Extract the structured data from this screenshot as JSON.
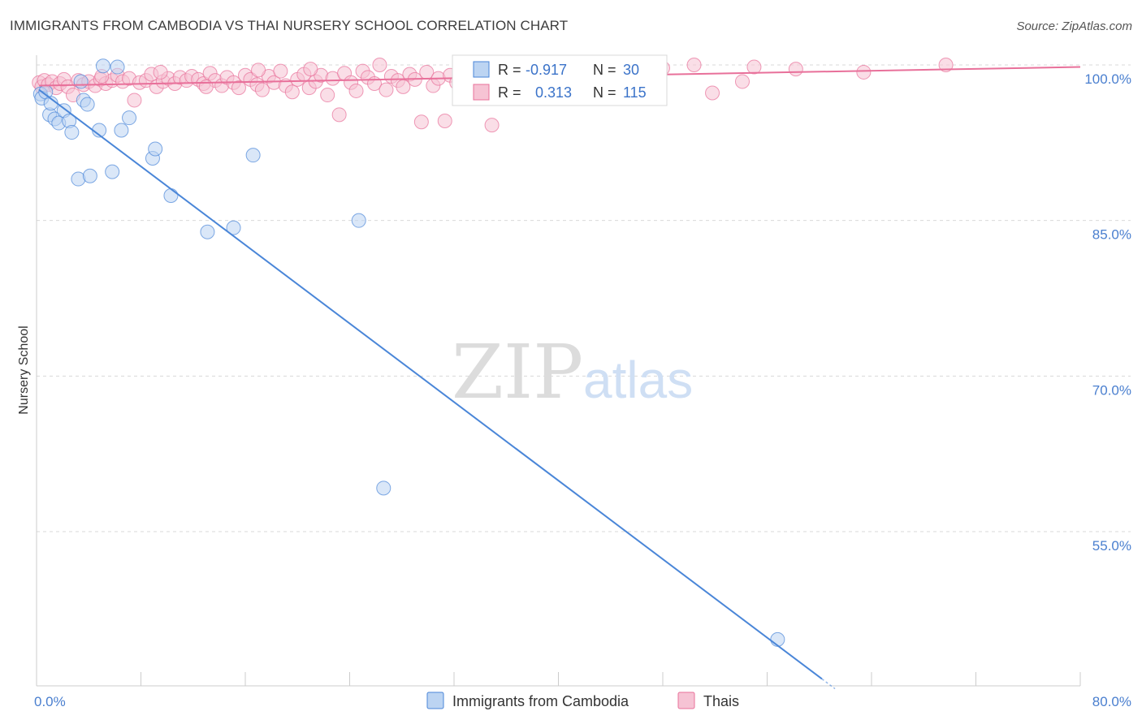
{
  "title": "IMMIGRANTS FROM CAMBODIA VS THAI NURSERY SCHOOL CORRELATION CHART",
  "source": "Source: ZipAtlas.com",
  "watermark": {
    "zip": "ZIP",
    "atlas": "atlas"
  },
  "colors": {
    "blue": "#4a86d8",
    "blue_fill": "#bcd4f2",
    "pink": "#e8709a",
    "pink_fill": "#f6c3d4",
    "tick_text": "#4a7fcf",
    "grid": "#d9d9d9"
  },
  "legend": {
    "rows": [
      {
        "r_label": "R =",
        "r_value": "-0.917",
        "n_label": "N =",
        "n_value": "30",
        "series": "blue"
      },
      {
        "r_label": "R =",
        "r_value": "0.313",
        "n_label": "N =",
        "n_value": "115",
        "series": "pink"
      }
    ]
  },
  "bottom_legend": [
    "Immigrants from Cambodia",
    "Thais"
  ],
  "chart_data": {
    "type": "scatter",
    "title": "IMMIGRANTS FROM CAMBODIA VS THAI NURSERY SCHOOL CORRELATION CHART",
    "xlabel": "",
    "ylabel": "Nursery School",
    "xlim": [
      0,
      80
    ],
    "ylim": [
      40,
      102
    ],
    "x_tick_labels": [
      "0.0%",
      "80.0%"
    ],
    "y_ticks": [
      100,
      85,
      70,
      55
    ],
    "y_tick_labels": [
      "100.0%",
      "85.0%",
      "70.0%",
      "55.0%"
    ],
    "grid": true,
    "legend_position": "top-center",
    "series": [
      {
        "name": "Immigrants from Cambodia",
        "color": "blue",
        "trend": {
          "x": [
            0.2,
            60.2
          ],
          "y": [
            97.6,
            40.8
          ]
        },
        "points": [
          {
            "x": 0.3,
            "y": 97.2
          },
          {
            "x": 0.4,
            "y": 96.8
          },
          {
            "x": 0.7,
            "y": 97.4
          },
          {
            "x": 1.0,
            "y": 95.2
          },
          {
            "x": 1.4,
            "y": 94.8
          },
          {
            "x": 1.7,
            "y": 94.4
          },
          {
            "x": 2.1,
            "y": 95.6
          },
          {
            "x": 2.5,
            "y": 94.6
          },
          {
            "x": 2.7,
            "y": 93.5
          },
          {
            "x": 3.2,
            "y": 89.0
          },
          {
            "x": 3.4,
            "y": 98.4
          },
          {
            "x": 3.6,
            "y": 96.6
          },
          {
            "x": 3.9,
            "y": 96.2
          },
          {
            "x": 4.1,
            "y": 89.3
          },
          {
            "x": 4.8,
            "y": 93.7
          },
          {
            "x": 5.1,
            "y": 99.9
          },
          {
            "x": 5.8,
            "y": 89.7
          },
          {
            "x": 6.2,
            "y": 99.8
          },
          {
            "x": 6.5,
            "y": 93.7
          },
          {
            "x": 7.1,
            "y": 94.9
          },
          {
            "x": 8.9,
            "y": 91.0
          },
          {
            "x": 9.1,
            "y": 91.9
          },
          {
            "x": 10.3,
            "y": 87.4
          },
          {
            "x": 13.1,
            "y": 83.9
          },
          {
            "x": 15.1,
            "y": 84.3
          },
          {
            "x": 16.6,
            "y": 91.3
          },
          {
            "x": 24.7,
            "y": 85.0
          },
          {
            "x": 26.6,
            "y": 59.2
          },
          {
            "x": 56.8,
            "y": 44.6
          },
          {
            "x": 1.1,
            "y": 96.3
          }
        ]
      },
      {
        "name": "Thais",
        "color": "pink",
        "trend": {
          "x": [
            0.2,
            80.0
          ],
          "y": [
            98.0,
            99.8
          ]
        },
        "points": [
          {
            "x": 0.2,
            "y": 98.3
          },
          {
            "x": 0.4,
            "y": 97.9
          },
          {
            "x": 0.6,
            "y": 98.5
          },
          {
            "x": 0.9,
            "y": 98.1
          },
          {
            "x": 1.2,
            "y": 98.4
          },
          {
            "x": 1.5,
            "y": 97.8
          },
          {
            "x": 1.8,
            "y": 98.2
          },
          {
            "x": 2.1,
            "y": 98.6
          },
          {
            "x": 2.4,
            "y": 97.9
          },
          {
            "x": 2.8,
            "y": 97.1
          },
          {
            "x": 3.2,
            "y": 98.5
          },
          {
            "x": 3.6,
            "y": 98.1
          },
          {
            "x": 4.0,
            "y": 98.4
          },
          {
            "x": 4.5,
            "y": 98.0
          },
          {
            "x": 4.9,
            "y": 98.6
          },
          {
            "x": 5.3,
            "y": 98.2
          },
          {
            "x": 5.8,
            "y": 98.5
          },
          {
            "x": 6.2,
            "y": 99.0
          },
          {
            "x": 6.6,
            "y": 98.4
          },
          {
            "x": 7.1,
            "y": 98.7
          },
          {
            "x": 7.5,
            "y": 96.6
          },
          {
            "x": 7.9,
            "y": 98.3
          },
          {
            "x": 8.4,
            "y": 98.5
          },
          {
            "x": 8.8,
            "y": 99.1
          },
          {
            "x": 9.2,
            "y": 97.9
          },
          {
            "x": 9.7,
            "y": 98.4
          },
          {
            "x": 10.1,
            "y": 98.7
          },
          {
            "x": 10.6,
            "y": 98.2
          },
          {
            "x": 11.0,
            "y": 98.8
          },
          {
            "x": 11.5,
            "y": 98.5
          },
          {
            "x": 11.9,
            "y": 98.9
          },
          {
            "x": 12.4,
            "y": 98.6
          },
          {
            "x": 12.8,
            "y": 98.2
          },
          {
            "x": 13.3,
            "y": 99.2
          },
          {
            "x": 13.7,
            "y": 98.5
          },
          {
            "x": 14.2,
            "y": 98.0
          },
          {
            "x": 14.6,
            "y": 98.8
          },
          {
            "x": 15.1,
            "y": 98.3
          },
          {
            "x": 15.5,
            "y": 97.8
          },
          {
            "x": 16.0,
            "y": 99.0
          },
          {
            "x": 16.4,
            "y": 98.6
          },
          {
            "x": 16.9,
            "y": 98.1
          },
          {
            "x": 17.3,
            "y": 97.6
          },
          {
            "x": 17.8,
            "y": 98.9
          },
          {
            "x": 18.2,
            "y": 98.3
          },
          {
            "x": 18.7,
            "y": 99.4
          },
          {
            "x": 19.1,
            "y": 98.0
          },
          {
            "x": 19.6,
            "y": 97.4
          },
          {
            "x": 20.0,
            "y": 98.6
          },
          {
            "x": 20.5,
            "y": 99.1
          },
          {
            "x": 20.9,
            "y": 97.8
          },
          {
            "x": 21.4,
            "y": 98.4
          },
          {
            "x": 21.8,
            "y": 99.0
          },
          {
            "x": 22.3,
            "y": 97.1
          },
          {
            "x": 22.7,
            "y": 98.7
          },
          {
            "x": 23.2,
            "y": 95.2
          },
          {
            "x": 23.6,
            "y": 99.2
          },
          {
            "x": 24.1,
            "y": 98.3
          },
          {
            "x": 24.5,
            "y": 97.5
          },
          {
            "x": 25.0,
            "y": 99.4
          },
          {
            "x": 25.4,
            "y": 98.8
          },
          {
            "x": 25.9,
            "y": 98.2
          },
          {
            "x": 26.3,
            "y": 100.0
          },
          {
            "x": 26.8,
            "y": 97.6
          },
          {
            "x": 27.2,
            "y": 98.9
          },
          {
            "x": 27.7,
            "y": 98.5
          },
          {
            "x": 28.1,
            "y": 97.9
          },
          {
            "x": 28.6,
            "y": 99.1
          },
          {
            "x": 29.0,
            "y": 98.6
          },
          {
            "x": 29.5,
            "y": 94.5
          },
          {
            "x": 29.9,
            "y": 99.3
          },
          {
            "x": 30.4,
            "y": 98.0
          },
          {
            "x": 30.8,
            "y": 98.7
          },
          {
            "x": 31.3,
            "y": 94.6
          },
          {
            "x": 31.7,
            "y": 99.0
          },
          {
            "x": 32.2,
            "y": 98.3
          },
          {
            "x": 32.6,
            "y": 99.5
          },
          {
            "x": 33.1,
            "y": 98.8
          },
          {
            "x": 33.5,
            "y": 98.1
          },
          {
            "x": 34.0,
            "y": 99.6
          },
          {
            "x": 34.4,
            "y": 98.4
          },
          {
            "x": 34.9,
            "y": 94.2
          },
          {
            "x": 35.3,
            "y": 99.2
          },
          {
            "x": 35.8,
            "y": 98.9
          },
          {
            "x": 36.2,
            "y": 99.4
          },
          {
            "x": 36.7,
            "y": 98.6
          },
          {
            "x": 37.1,
            "y": 99.8
          },
          {
            "x": 37.6,
            "y": 99.1
          },
          {
            "x": 38.0,
            "y": 99.5
          },
          {
            "x": 38.5,
            "y": 98.8
          },
          {
            "x": 38.9,
            "y": 99.9
          },
          {
            "x": 39.4,
            "y": 99.3
          },
          {
            "x": 39.8,
            "y": 98.7
          },
          {
            "x": 40.3,
            "y": 99.6
          },
          {
            "x": 40.7,
            "y": 100.0
          },
          {
            "x": 41.2,
            "y": 99.2
          },
          {
            "x": 41.6,
            "y": 98.9
          },
          {
            "x": 42.1,
            "y": 99.7
          },
          {
            "x": 42.5,
            "y": 99.4
          },
          {
            "x": 43.0,
            "y": 99.0
          },
          {
            "x": 44.2,
            "y": 99.5
          },
          {
            "x": 46.1,
            "y": 99.2
          },
          {
            "x": 48.0,
            "y": 99.7
          },
          {
            "x": 50.4,
            "y": 100.0
          },
          {
            "x": 51.8,
            "y": 97.3
          },
          {
            "x": 54.1,
            "y": 98.4
          },
          {
            "x": 55.0,
            "y": 99.8
          },
          {
            "x": 58.2,
            "y": 99.6
          },
          {
            "x": 63.4,
            "y": 99.3
          },
          {
            "x": 69.7,
            "y": 100.0
          },
          {
            "x": 5.0,
            "y": 98.9
          },
          {
            "x": 9.5,
            "y": 99.3
          },
          {
            "x": 13.0,
            "y": 97.9
          },
          {
            "x": 17.0,
            "y": 99.5
          },
          {
            "x": 21.0,
            "y": 99.6
          }
        ]
      }
    ]
  }
}
